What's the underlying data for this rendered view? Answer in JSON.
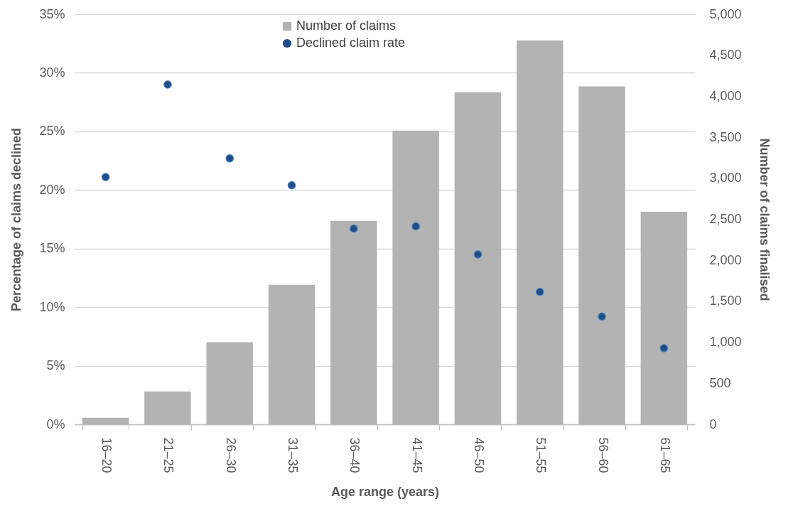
{
  "chart_data": {
    "type": "bar",
    "xlabel": "Age range (years)",
    "ylabel": "Percentage of claims declined",
    "y2label": "Number of claims finalised",
    "categories": [
      "16–20",
      "21–25",
      "26–30",
      "31–35",
      "36–40",
      "41–45",
      "46–50",
      "51–55",
      "56–60",
      "61–65"
    ],
    "series": [
      {
        "name": "Number of claims",
        "type": "bar",
        "axis": "y2",
        "color": "#b3b3b3",
        "values": [
          80,
          400,
          1000,
          1700,
          2480,
          3580,
          4050,
          4680,
          4120,
          2590
        ]
      },
      {
        "name": "Declined claim rate",
        "type": "scatter",
        "axis": "y",
        "color": "#1f4e89",
        "values": [
          21.1,
          29.0,
          22.7,
          20.4,
          16.7,
          16.9,
          14.5,
          11.3,
          9.2,
          6.5
        ]
      }
    ],
    "ylim": [
      0,
      35
    ],
    "yticks": [
      {
        "value": 0,
        "label": "0%"
      },
      {
        "value": 5,
        "label": "5%"
      },
      {
        "value": 10,
        "label": "10%"
      },
      {
        "value": 15,
        "label": "15%"
      },
      {
        "value": 20,
        "label": "20%"
      },
      {
        "value": 25,
        "label": "25%"
      },
      {
        "value": 30,
        "label": "30%"
      },
      {
        "value": 35,
        "label": "35%"
      }
    ],
    "y2lim": [
      0,
      5000
    ],
    "y2ticks": [
      0,
      500,
      {
        "value": 1000,
        "label": "1,000"
      },
      {
        "value": 1500,
        "label": "1,500"
      },
      {
        "value": 2000,
        "label": "2,000"
      },
      {
        "value": 2500,
        "label": "2,500"
      },
      {
        "value": 3000,
        "label": "3,000"
      },
      {
        "value": 3500,
        "label": "3,500"
      },
      {
        "value": 4000,
        "label": "4,000"
      },
      {
        "value": 4500,
        "label": "4,500"
      },
      {
        "value": 5000,
        "label": "5,000"
      }
    ],
    "grid": "y",
    "legend": "top",
    "marker": "circle"
  }
}
